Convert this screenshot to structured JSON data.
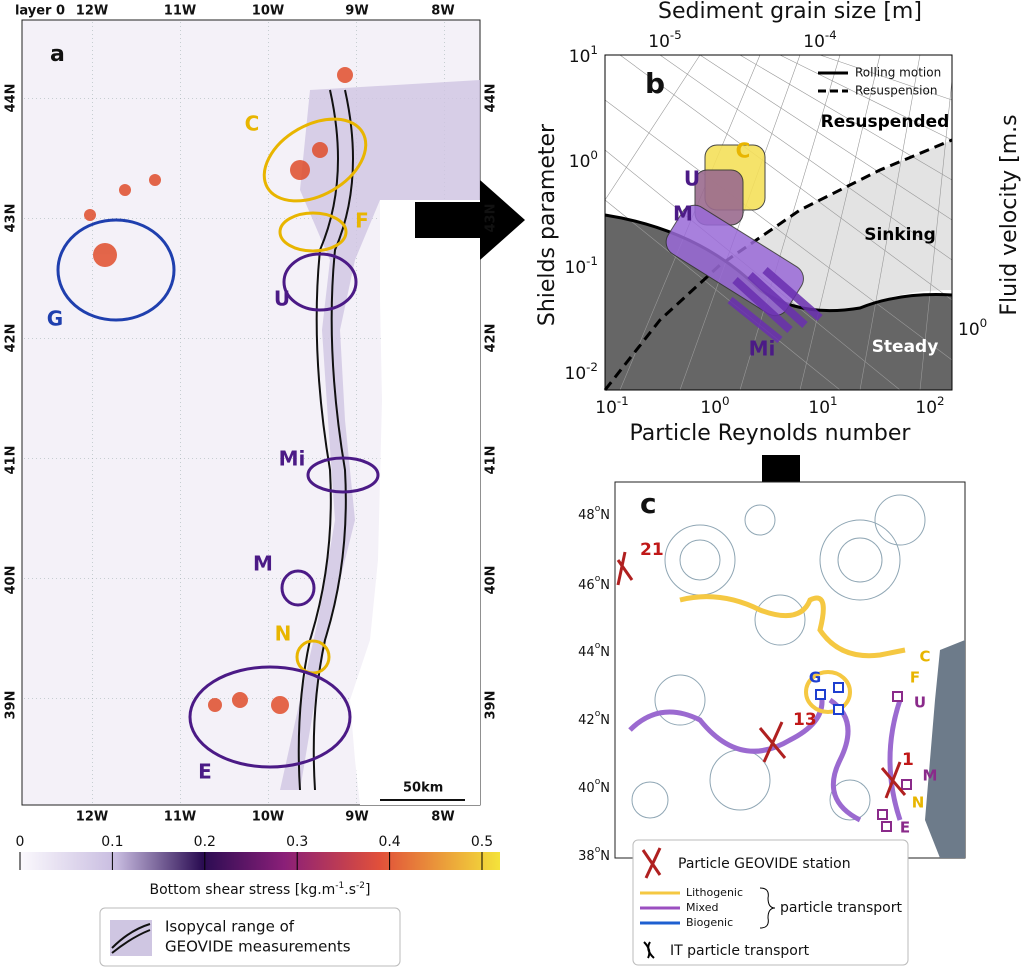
{
  "panel_a": {
    "label": "a",
    "top_ticks": [
      "layer 0",
      "12W",
      "11W",
      "10W",
      "9W",
      "8W"
    ],
    "bottom_ticks": [
      "12W",
      "11W",
      "10W",
      "9W",
      "8W"
    ],
    "lat_ticks": [
      "44N",
      "43N",
      "42N",
      "41N",
      "40N",
      "39N"
    ],
    "regions": [
      {
        "label": "C",
        "color": "#e8b500"
      },
      {
        "label": "F",
        "color": "#e8b500"
      },
      {
        "label": "G",
        "color": "#1f3fae"
      },
      {
        "label": "U",
        "color": "#4b1a86"
      },
      {
        "label": "Mi",
        "color": "#4b1a86"
      },
      {
        "label": "M",
        "color": "#4b1a86"
      },
      {
        "label": "N",
        "color": "#e8b500"
      },
      {
        "label": "E",
        "color": "#4b1a86"
      }
    ],
    "scale": "50km",
    "colorbar": {
      "ticks": [
        "0",
        "0.1",
        "0.2",
        "0.3",
        "0.4",
        "0.5"
      ],
      "title_parts": [
        "Bottom shear stress [kg.m",
        "-1",
        ".s",
        "-2",
        "]"
      ]
    },
    "legend": [
      "Isopycal range of",
      "GEOVIDE measurements"
    ]
  },
  "panel_b": {
    "label": "b",
    "top_title": "Sediment grain size [m]",
    "top_ticks": [
      {
        "base": "10",
        "exp": "-5"
      },
      {
        "base": "10",
        "exp": "-4"
      }
    ],
    "y_label": "Shields parameter",
    "y_ticks": [
      {
        "base": "10",
        "exp": "1"
      },
      {
        "base": "10",
        "exp": "0"
      },
      {
        "base": "10",
        "exp": "-1"
      },
      {
        "base": "10",
        "exp": "-2"
      }
    ],
    "x_label": "Particle Reynolds number",
    "x_ticks": [
      {
        "base": "10",
        "exp": "-1"
      },
      {
        "base": "10",
        "exp": "0"
      },
      {
        "base": "10",
        "exp": "1"
      },
      {
        "base": "10",
        "exp": "2"
      }
    ],
    "right_label": "Fluid velocity [m.s",
    "right_tick": {
      "base": "10",
      "exp": "0"
    },
    "legend": [
      "Rolling motion",
      "Resuspension"
    ],
    "zones": [
      "Resuspended",
      "Sinking",
      "Steady"
    ],
    "regions": [
      "C",
      "U",
      "M",
      "Mi"
    ]
  },
  "panel_c": {
    "label": "c",
    "lat_ticks": [
      {
        "base": "48",
        "exp": "o",
        "end": "N"
      },
      {
        "base": "46",
        "exp": "o",
        "end": "N"
      },
      {
        "base": "44",
        "exp": "o",
        "end": "N"
      },
      {
        "base": "42",
        "exp": "o",
        "end": "N"
      },
      {
        "base": "40",
        "exp": "o",
        "end": "N"
      },
      {
        "base": "38",
        "exp": "o",
        "end": "N"
      }
    ],
    "stations": [
      "21",
      "13",
      "1"
    ],
    "sites": [
      "C",
      "F",
      "U",
      "G",
      "M",
      "N",
      "E"
    ],
    "legend": {
      "station": "Particle GEOVIDE station",
      "types": [
        "Lithogenic",
        "Mixed",
        "Biogenic"
      ],
      "transport": "particle transport",
      "it": "IT particle transport"
    }
  }
}
